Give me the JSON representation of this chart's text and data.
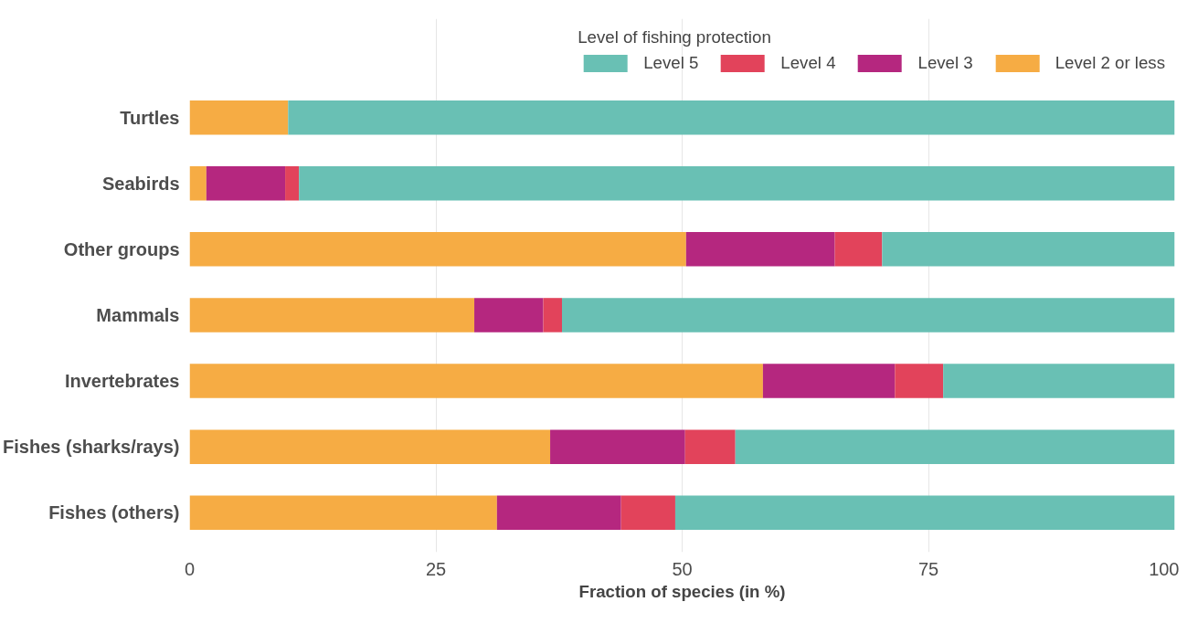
{
  "chart_data": {
    "type": "bar",
    "orientation": "horizontal",
    "stacked": true,
    "categories": [
      "Turtles",
      "Seabirds",
      "Other groups",
      "Mammals",
      "Invertebrates",
      "Fishes (sharks/rays)",
      "Fishes (others)"
    ],
    "series": [
      {
        "name": "Level 2 or less",
        "color": "#f6ac44",
        "values": [
          10,
          1.7,
          50.4,
          28.9,
          58.2,
          36.6,
          31.2
        ]
      },
      {
        "name": "Level 3",
        "color": "#b5277f",
        "values": [
          0,
          8.0,
          15.1,
          7.0,
          13.4,
          13.7,
          12.6
        ]
      },
      {
        "name": "Level 4",
        "color": "#e2435b",
        "values": [
          0,
          1.4,
          4.8,
          1.9,
          4.9,
          5.1,
          5.5
        ]
      },
      {
        "name": "Level 5",
        "color": "#69c0b4",
        "values": [
          90,
          88.9,
          29.7,
          62.2,
          23.5,
          44.6,
          50.7
        ]
      }
    ],
    "xlabel": "Fraction of species (in %)",
    "legend_title": "Level of fishing protection",
    "xlim": [
      0,
      100
    ],
    "xticks": [
      0,
      25,
      50,
      75,
      100
    ],
    "grid": "x",
    "legend": "top"
  }
}
